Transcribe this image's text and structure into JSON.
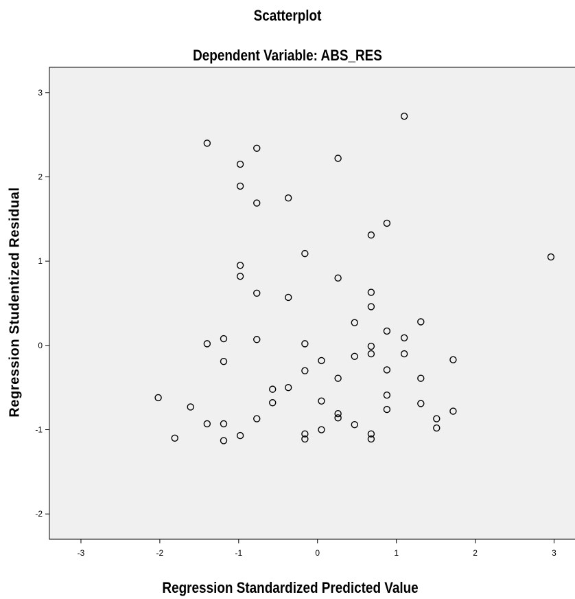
{
  "chart_data": {
    "type": "scatter",
    "title": "Scatterplot",
    "subtitle": "Dependent Variable: ABS_RES",
    "xlabel": "Regression Standardized Predicted Value",
    "ylabel": "Regression Studentized Residual",
    "xlim": [
      -3.4,
      3.3
    ],
    "ylim": [
      -2.3,
      3.3
    ],
    "xticks": [
      -3,
      -2,
      -1,
      0,
      1,
      2,
      3
    ],
    "yticks": [
      -2,
      -1,
      0,
      1,
      2,
      3
    ],
    "grid": false,
    "background": "#f0f0f0",
    "marker": "open-circle",
    "points": [
      [
        1.1,
        2.72
      ],
      [
        -1.4,
        2.4
      ],
      [
        -0.77,
        2.34
      ],
      [
        0.26,
        2.22
      ],
      [
        -0.98,
        2.15
      ],
      [
        -0.98,
        1.89
      ],
      [
        -0.77,
        1.69
      ],
      [
        -0.37,
        1.75
      ],
      [
        0.88,
        1.45
      ],
      [
        0.68,
        1.31
      ],
      [
        -0.16,
        1.09
      ],
      [
        2.96,
        1.05
      ],
      [
        -0.98,
        0.95
      ],
      [
        -0.98,
        0.82
      ],
      [
        0.26,
        0.8
      ],
      [
        -0.77,
        0.62
      ],
      [
        -0.37,
        0.57
      ],
      [
        0.68,
        0.63
      ],
      [
        0.68,
        0.46
      ],
      [
        0.47,
        0.27
      ],
      [
        1.31,
        0.28
      ],
      [
        0.88,
        0.17
      ],
      [
        1.1,
        0.09
      ],
      [
        -1.19,
        0.08
      ],
      [
        -0.77,
        0.07
      ],
      [
        -1.4,
        0.02
      ],
      [
        -0.16,
        0.02
      ],
      [
        0.68,
        -0.01
      ],
      [
        0.68,
        -0.1
      ],
      [
        0.47,
        -0.13
      ],
      [
        1.1,
        -0.1
      ],
      [
        1.72,
        -0.17
      ],
      [
        -1.19,
        -0.19
      ],
      [
        0.05,
        -0.18
      ],
      [
        -0.16,
        -0.3
      ],
      [
        0.88,
        -0.29
      ],
      [
        0.26,
        -0.39
      ],
      [
        1.31,
        -0.39
      ],
      [
        -0.37,
        -0.5
      ],
      [
        -0.57,
        -0.52
      ],
      [
        -2.02,
        -0.62
      ],
      [
        0.88,
        -0.59
      ],
      [
        -0.57,
        -0.68
      ],
      [
        0.05,
        -0.66
      ],
      [
        1.31,
        -0.69
      ],
      [
        -1.61,
        -0.73
      ],
      [
        0.88,
        -0.76
      ],
      [
        1.72,
        -0.78
      ],
      [
        0.26,
        -0.81
      ],
      [
        0.26,
        -0.86
      ],
      [
        -0.77,
        -0.87
      ],
      [
        1.51,
        -0.87
      ],
      [
        -1.4,
        -0.93
      ],
      [
        -1.19,
        -0.93
      ],
      [
        0.47,
        -0.94
      ],
      [
        1.51,
        -0.98
      ],
      [
        0.05,
        -1.0
      ],
      [
        -0.16,
        -1.05
      ],
      [
        0.68,
        -1.05
      ],
      [
        -0.98,
        -1.07
      ],
      [
        -1.81,
        -1.1
      ],
      [
        -0.16,
        -1.11
      ],
      [
        0.68,
        -1.11
      ],
      [
        -1.19,
        -1.13
      ]
    ]
  }
}
